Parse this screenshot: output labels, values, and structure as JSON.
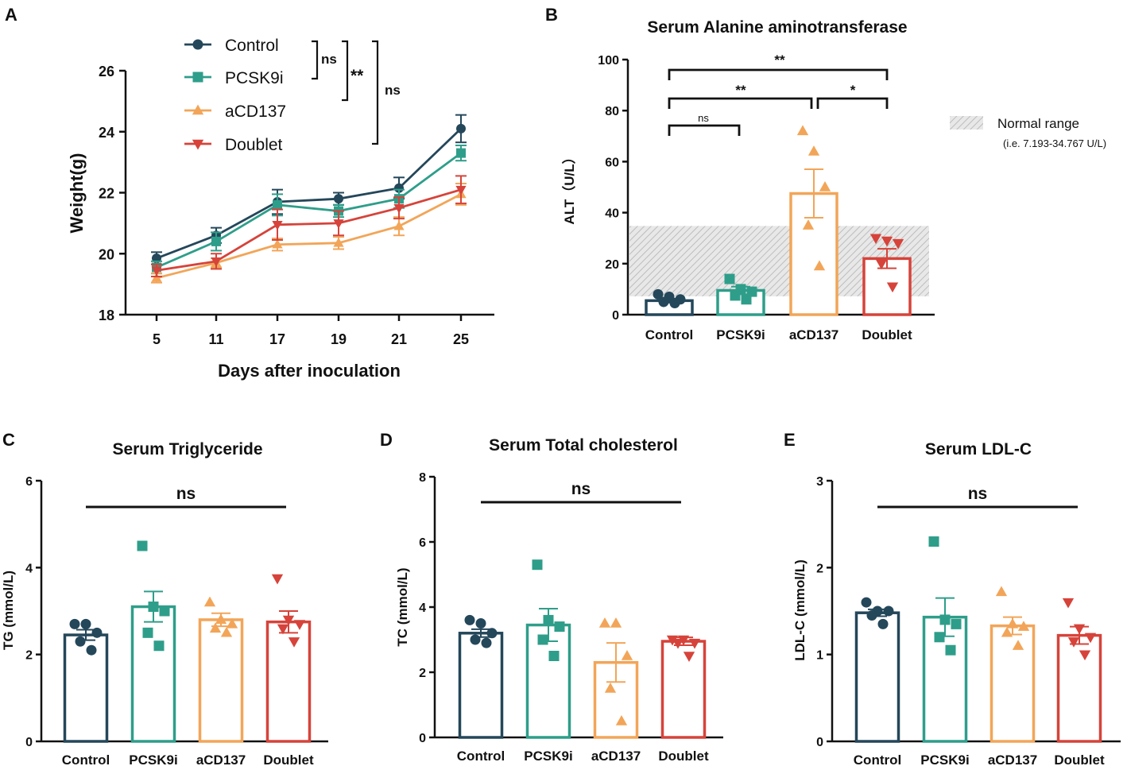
{
  "colors": {
    "Control": "#24475a",
    "PCSK9i": "#2e9e8a",
    "aCD137": "#f2a558",
    "Doublet": "#d6433a"
  },
  "panels": {
    "A": {
      "letter": "A",
      "chart_data": {
        "type": "line",
        "x": [
          5,
          11,
          17,
          19,
          21,
          25
        ],
        "xlabel": "Days after inoculation",
        "ylabel": "Weight(g)",
        "ylim": [
          18,
          26
        ],
        "yticks": [
          18,
          20,
          22,
          24,
          26
        ],
        "series": [
          {
            "name": "Control",
            "marker": "circle",
            "values": [
              19.85,
              20.6,
              21.7,
              21.8,
              22.15,
              24.1
            ],
            "err": [
              0.2,
              0.25,
              0.4,
              0.2,
              0.35,
              0.45
            ]
          },
          {
            "name": "PCSK9i",
            "marker": "square",
            "values": [
              19.55,
              20.4,
              21.6,
              21.4,
              21.8,
              23.3
            ],
            "err": [
              0.2,
              0.3,
              0.35,
              0.2,
              0.3,
              0.25
            ]
          },
          {
            "name": "aCD137",
            "marker": "triangle-up",
            "values": [
              19.2,
              19.7,
              20.3,
              20.35,
              20.9,
              21.95
            ],
            "err": [
              0.15,
              0.15,
              0.2,
              0.2,
              0.3,
              0.35
            ]
          },
          {
            "name": "Doublet",
            "marker": "triangle-down",
            "values": [
              19.45,
              19.75,
              20.95,
              21.0,
              21.5,
              22.1
            ],
            "err": [
              0.2,
              0.25,
              0.5,
              0.4,
              0.35,
              0.45
            ]
          }
        ],
        "significance": [
          {
            "between": [
              "Control",
              "PCSK9i"
            ],
            "label": "ns"
          },
          {
            "between": [
              "Control",
              "aCD137"
            ],
            "label": "**"
          },
          {
            "between": [
              "Control",
              "Doublet"
            ],
            "label": "ns"
          }
        ]
      }
    },
    "B": {
      "letter": "B",
      "chart_data": {
        "type": "bar",
        "title": "Serum Alanine aminotransferase",
        "ylabel": "ALT（U/L）",
        "ylim": [
          0,
          100
        ],
        "yticks": [
          0,
          20,
          40,
          60,
          80,
          100
        ],
        "categories": [
          "Control",
          "PCSK9i",
          "aCD137",
          "Doublet"
        ],
        "means": [
          5.5,
          9.5,
          47.5,
          22.0
        ],
        "sem": [
          0.8,
          1.5,
          9.5,
          3.8
        ],
        "points": [
          [
            8,
            7,
            6,
            5,
            4.5
          ],
          [
            14,
            10,
            9,
            7.5,
            6
          ],
          [
            72,
            64,
            50,
            35,
            19
          ],
          [
            30,
            29,
            28,
            20,
            11
          ]
        ],
        "normal_range": [
          7.193,
          34.767
        ],
        "legend_label": "Normal range",
        "legend_note": "(i.e. 7.193-34.767 U/L)",
        "significance": [
          {
            "between": [
              "Control",
              "Doublet"
            ],
            "label": "**"
          },
          {
            "between": [
              "Control",
              "aCD137"
            ],
            "label": "**"
          },
          {
            "between": [
              "aCD137",
              "Doublet"
            ],
            "label": "*"
          },
          {
            "between": [
              "Control",
              "PCSK9i"
            ],
            "label": "ns"
          }
        ]
      }
    },
    "C": {
      "letter": "C",
      "chart_data": {
        "type": "bar",
        "title": "Serum Triglyceride",
        "ylabel": "TG (mmol/L)",
        "ylim": [
          0,
          6
        ],
        "yticks": [
          0,
          2,
          4,
          6
        ],
        "categories": [
          "Control",
          "PCSK9i",
          "aCD137",
          "Doublet"
        ],
        "means": [
          2.45,
          3.1,
          2.8,
          2.75
        ],
        "sem": [
          0.12,
          0.35,
          0.15,
          0.25
        ],
        "points": [
          [
            2.7,
            2.7,
            2.5,
            2.3,
            2.1
          ],
          [
            4.5,
            3.1,
            3.0,
            2.5,
            2.2
          ],
          [
            3.2,
            2.8,
            2.7,
            2.6,
            2.5
          ],
          [
            3.75,
            2.8,
            2.7,
            2.6,
            2.3
          ]
        ],
        "significance": [
          {
            "between": [
              "Control",
              "Doublet"
            ],
            "label": "ns"
          }
        ]
      }
    },
    "D": {
      "letter": "D",
      "chart_data": {
        "type": "bar",
        "title": "Serum Total cholesterol",
        "ylabel": "TC (mmol/L)",
        "ylim": [
          0,
          8
        ],
        "yticks": [
          0,
          2,
          4,
          6,
          8
        ],
        "categories": [
          "Control",
          "PCSK9i",
          "aCD137",
          "Doublet"
        ],
        "means": [
          3.2,
          3.45,
          2.3,
          2.95
        ],
        "sem": [
          0.12,
          0.5,
          0.6,
          0.12
        ],
        "points": [
          [
            3.6,
            3.5,
            3.2,
            3.0,
            2.9
          ],
          [
            5.3,
            3.6,
            3.4,
            3.0,
            2.5
          ],
          [
            3.5,
            3.5,
            2.5,
            1.5,
            0.5
          ],
          [
            3.0,
            3.0,
            2.9,
            2.9,
            2.5
          ]
        ],
        "significance": [
          {
            "between": [
              "Control",
              "Doublet"
            ],
            "label": "ns"
          }
        ]
      }
    },
    "E": {
      "letter": "E",
      "chart_data": {
        "type": "bar",
        "title": "Serum LDL-C",
        "ylabel": "LDL-C (mmol/L)",
        "ylim": [
          0,
          3
        ],
        "yticks": [
          0,
          1,
          2,
          3
        ],
        "categories": [
          "Control",
          "PCSK9i",
          "aCD137",
          "Doublet"
        ],
        "means": [
          1.48,
          1.43,
          1.33,
          1.22
        ],
        "sem": [
          0.04,
          0.22,
          0.1,
          0.1
        ],
        "points": [
          [
            1.6,
            1.5,
            1.5,
            1.45,
            1.35
          ],
          [
            2.3,
            1.4,
            1.35,
            1.2,
            1.05
          ],
          [
            1.72,
            1.35,
            1.32,
            1.25,
            1.1
          ],
          [
            1.6,
            1.3,
            1.2,
            1.15,
            1.0
          ]
        ],
        "significance": [
          {
            "between": [
              "Control",
              "Doublet"
            ],
            "label": "ns"
          }
        ]
      }
    }
  }
}
